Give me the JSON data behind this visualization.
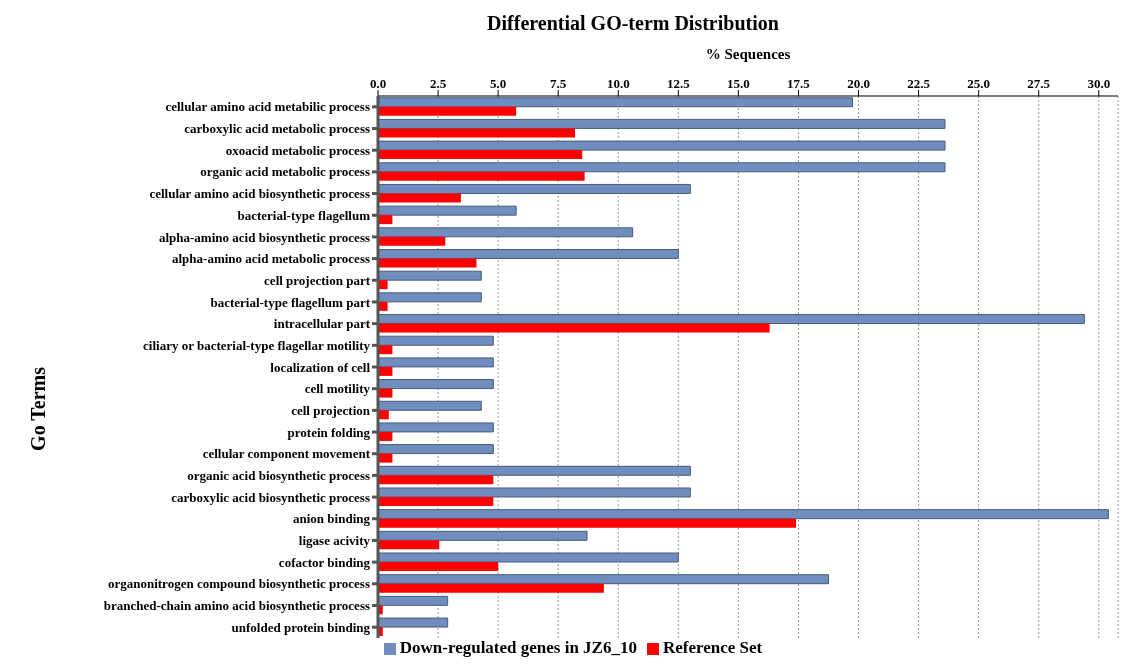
{
  "chart_data": {
    "type": "bar",
    "orientation": "horizontal",
    "title": "Differential GO-term Distribution",
    "xlabel": "% Sequences",
    "ylabel": "Go Terms",
    "categories": [
      "cellular amino acid metabilic process",
      "carboxylic acid metabolic process",
      "oxoacid metabolic process",
      "organic acid metabolic process",
      "cellular amino acid biosynthetic process",
      "bacterial-type flagellum",
      "alpha-amino acid biosynthetic process",
      "alpha-amino acid metabolic process",
      "cell projection part",
      "bacterial-type flagellum part",
      "intracellular part",
      "ciliary or bacterial-type flagellar motility",
      "localization of cell",
      "cell motility",
      "cell projection",
      "protein folding",
      "cellular component movement",
      "organic acid biosynthetic process",
      "carboxylic acid biosynthetic process",
      "anion binding",
      "ligase acivity",
      "cofactor binding",
      "organonitrogen compound biosynthetic process",
      "branched-chain amino acid biosynthetic process",
      "unfolded protein binding"
    ],
    "series": [
      {
        "name": "Down-regulated genes in JZ6_10",
        "color": "#6f8ebf",
        "values": [
          19.75,
          23.6,
          23.6,
          23.6,
          13.0,
          5.75,
          10.6,
          12.5,
          4.3,
          4.3,
          29.4,
          4.8,
          4.8,
          4.8,
          4.3,
          4.8,
          4.8,
          13.0,
          13.0,
          30.4,
          8.7,
          12.5,
          18.75,
          2.9,
          2.9
        ]
      },
      {
        "name": "Reference Set",
        "color": "#ff0000",
        "values": [
          5.75,
          8.2,
          8.5,
          8.6,
          3.45,
          0.6,
          2.8,
          4.1,
          0.4,
          0.4,
          16.3,
          0.6,
          0.6,
          0.6,
          0.45,
          0.6,
          0.6,
          4.8,
          4.8,
          17.4,
          2.55,
          5.0,
          9.4,
          0.2,
          0.2
        ]
      }
    ],
    "xlim": [
      0,
      30.8
    ],
    "xticks": [
      {
        "value": 0,
        "label": "0.0"
      },
      {
        "value": 2.5,
        "label": "2.5"
      },
      {
        "value": 5,
        "label": "5.0"
      },
      {
        "value": 7.5,
        "label": "7.5"
      },
      {
        "value": 10,
        "label": "10.0"
      },
      {
        "value": 12.5,
        "label": "12.5"
      },
      {
        "value": 15,
        "label": "15.0"
      },
      {
        "value": 17.5,
        "label": "17.5"
      },
      {
        "value": 20,
        "label": "20.0"
      },
      {
        "value": 22.5,
        "label": "22.5"
      },
      {
        "value": 25,
        "label": "25.0"
      },
      {
        "value": 27.5,
        "label": "27.5"
      },
      {
        "value": 30,
        "label": "30.0"
      }
    ],
    "grid": "x",
    "legend": "bottom"
  }
}
